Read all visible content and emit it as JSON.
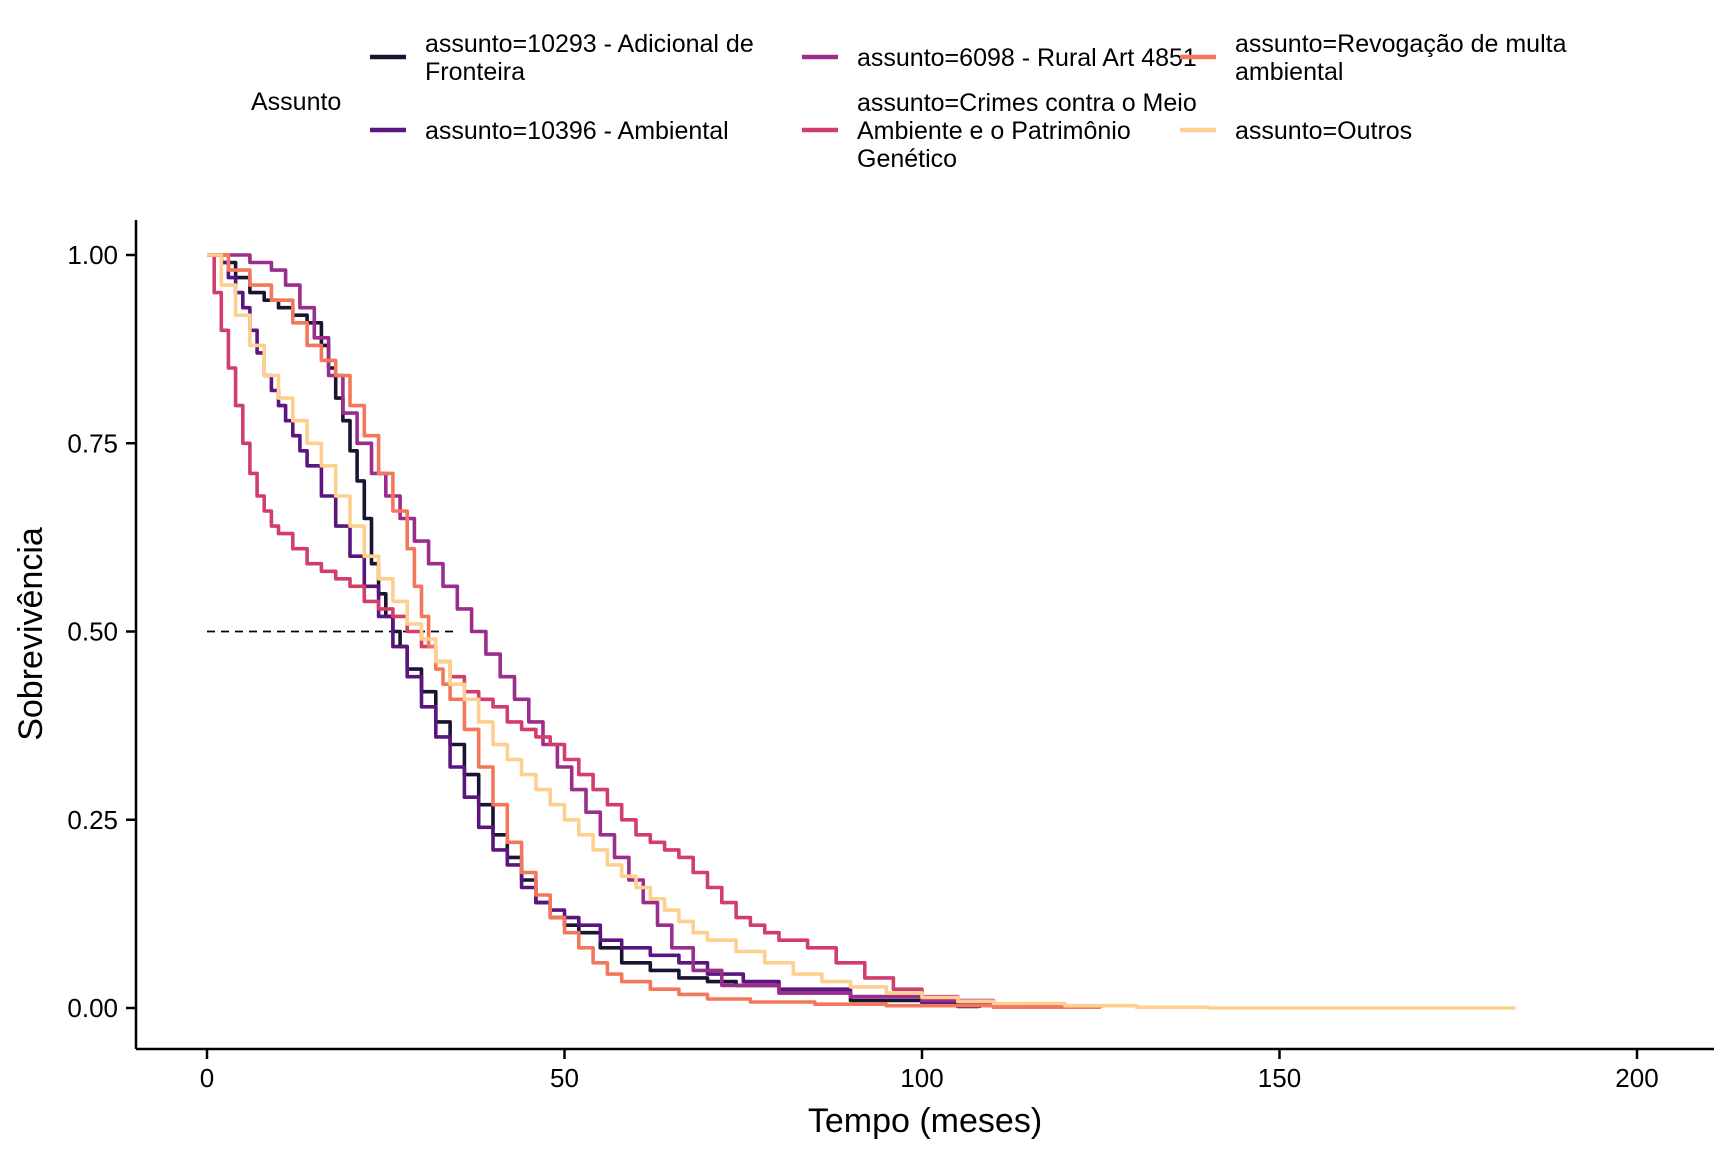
{
  "chart_data": {
    "type": "line",
    "step": true,
    "xlabel": "Tempo (meses)",
    "ylabel": "Sobrevivência",
    "xlim": [
      -10,
      210
    ],
    "ylim": [
      -0.05,
      1.05
    ],
    "x_ticks": [
      0,
      50,
      100,
      150,
      200
    ],
    "x_tick_labels": [
      "0",
      "50",
      "100",
      "150",
      "200"
    ],
    "y_ticks": [
      0,
      0.25,
      0.5,
      0.75,
      1.0
    ],
    "y_tick_labels": [
      "0.00",
      "0.25",
      "0.50",
      "0.75",
      "1.00"
    ],
    "grid": false,
    "legend": {
      "title": "Assunto",
      "position": "top"
    },
    "median_line": {
      "y": 0.5,
      "x_from": 0,
      "x_to": 35,
      "style": "dashed"
    },
    "series": [
      {
        "name": "assunto=10293 - Adicional de Fronteira",
        "color": "#1a1433",
        "points": [
          [
            0,
            1.0
          ],
          [
            2,
            0.99
          ],
          [
            4,
            0.97
          ],
          [
            6,
            0.95
          ],
          [
            8,
            0.94
          ],
          [
            10,
            0.93
          ],
          [
            12,
            0.92
          ],
          [
            14,
            0.91
          ],
          [
            16,
            0.88
          ],
          [
            17,
            0.85
          ],
          [
            18,
            0.81
          ],
          [
            19,
            0.78
          ],
          [
            20,
            0.74
          ],
          [
            21,
            0.7
          ],
          [
            22,
            0.65
          ],
          [
            23,
            0.59
          ],
          [
            24,
            0.55
          ],
          [
            25,
            0.52
          ],
          [
            26,
            0.5
          ],
          [
            27,
            0.48
          ],
          [
            28,
            0.45
          ],
          [
            30,
            0.42
          ],
          [
            32,
            0.38
          ],
          [
            34,
            0.35
          ],
          [
            36,
            0.31
          ],
          [
            38,
            0.27
          ],
          [
            40,
            0.23
          ],
          [
            42,
            0.2
          ],
          [
            44,
            0.17
          ],
          [
            46,
            0.14
          ],
          [
            48,
            0.12
          ],
          [
            50,
            0.11
          ],
          [
            52,
            0.1
          ],
          [
            55,
            0.08
          ],
          [
            58,
            0.06
          ],
          [
            62,
            0.05
          ],
          [
            66,
            0.04
          ],
          [
            70,
            0.035
          ],
          [
            74,
            0.03
          ],
          [
            80,
            0.02
          ],
          [
            90,
            0.01
          ],
          [
            100,
            0.005
          ],
          [
            105,
            0.002
          ],
          [
            108,
            0.0
          ]
        ]
      },
      {
        "name": "assunto=10396 - Ambiental",
        "color": "#5a167e",
        "points": [
          [
            0,
            1.0
          ],
          [
            2,
            0.99
          ],
          [
            3,
            0.97
          ],
          [
            4,
            0.95
          ],
          [
            5,
            0.93
          ],
          [
            6,
            0.9
          ],
          [
            7,
            0.87
          ],
          [
            8,
            0.84
          ],
          [
            9,
            0.82
          ],
          [
            10,
            0.8
          ],
          [
            11,
            0.78
          ],
          [
            12,
            0.76
          ],
          [
            13,
            0.74
          ],
          [
            14,
            0.72
          ],
          [
            16,
            0.68
          ],
          [
            18,
            0.64
          ],
          [
            20,
            0.6
          ],
          [
            22,
            0.56
          ],
          [
            24,
            0.52
          ],
          [
            26,
            0.48
          ],
          [
            28,
            0.44
          ],
          [
            30,
            0.4
          ],
          [
            32,
            0.36
          ],
          [
            34,
            0.32
          ],
          [
            36,
            0.28
          ],
          [
            38,
            0.24
          ],
          [
            40,
            0.21
          ],
          [
            42,
            0.19
          ],
          [
            44,
            0.16
          ],
          [
            46,
            0.14
          ],
          [
            48,
            0.13
          ],
          [
            50,
            0.12
          ],
          [
            52,
            0.11
          ],
          [
            55,
            0.09
          ],
          [
            58,
            0.08
          ],
          [
            62,
            0.07
          ],
          [
            66,
            0.06
          ],
          [
            70,
            0.045
          ],
          [
            75,
            0.035
          ],
          [
            80,
            0.025
          ],
          [
            90,
            0.015
          ],
          [
            100,
            0.008
          ],
          [
            110,
            0.003
          ],
          [
            115,
            0.0
          ]
        ]
      },
      {
        "name": "assunto=6098 - Rural Art 4851",
        "color": "#9b2d8c",
        "points": [
          [
            0,
            1.0
          ],
          [
            3,
            1.0
          ],
          [
            6,
            0.99
          ],
          [
            9,
            0.98
          ],
          [
            11,
            0.96
          ],
          [
            13,
            0.93
          ],
          [
            15,
            0.89
          ],
          [
            17,
            0.84
          ],
          [
            19,
            0.79
          ],
          [
            21,
            0.75
          ],
          [
            23,
            0.71
          ],
          [
            25,
            0.68
          ],
          [
            27,
            0.65
          ],
          [
            29,
            0.62
          ],
          [
            31,
            0.59
          ],
          [
            33,
            0.56
          ],
          [
            35,
            0.53
          ],
          [
            37,
            0.5
          ],
          [
            39,
            0.47
          ],
          [
            41,
            0.44
          ],
          [
            43,
            0.41
          ],
          [
            45,
            0.38
          ],
          [
            47,
            0.35
          ],
          [
            49,
            0.32
          ],
          [
            51,
            0.29
          ],
          [
            53,
            0.26
          ],
          [
            55,
            0.23
          ],
          [
            57,
            0.2
          ],
          [
            59,
            0.17
          ],
          [
            61,
            0.14
          ],
          [
            63,
            0.11
          ],
          [
            65,
            0.08
          ],
          [
            68,
            0.05
          ],
          [
            72,
            0.03
          ],
          [
            80,
            0.02
          ],
          [
            90,
            0.015
          ],
          [
            100,
            0.01
          ],
          [
            110,
            0.005
          ],
          [
            120,
            0.002
          ],
          [
            125,
            0.0
          ]
        ]
      },
      {
        "name": "assunto=Crimes contra o Meio Ambiente e o Patrimônio Genético",
        "color": "#d13e6b",
        "points": [
          [
            0,
            1.0
          ],
          [
            1,
            0.95
          ],
          [
            2,
            0.9
          ],
          [
            3,
            0.85
          ],
          [
            4,
            0.8
          ],
          [
            5,
            0.75
          ],
          [
            6,
            0.71
          ],
          [
            7,
            0.68
          ],
          [
            8,
            0.66
          ],
          [
            9,
            0.64
          ],
          [
            10,
            0.63
          ],
          [
            12,
            0.61
          ],
          [
            14,
            0.59
          ],
          [
            16,
            0.58
          ],
          [
            18,
            0.57
          ],
          [
            20,
            0.56
          ],
          [
            22,
            0.54
          ],
          [
            24,
            0.53
          ],
          [
            26,
            0.52
          ],
          [
            28,
            0.5
          ],
          [
            30,
            0.48
          ],
          [
            32,
            0.46
          ],
          [
            34,
            0.44
          ],
          [
            36,
            0.42
          ],
          [
            38,
            0.41
          ],
          [
            40,
            0.4
          ],
          [
            42,
            0.38
          ],
          [
            44,
            0.37
          ],
          [
            46,
            0.36
          ],
          [
            48,
            0.35
          ],
          [
            50,
            0.33
          ],
          [
            52,
            0.31
          ],
          [
            54,
            0.29
          ],
          [
            56,
            0.27
          ],
          [
            58,
            0.25
          ],
          [
            60,
            0.23
          ],
          [
            62,
            0.22
          ],
          [
            64,
            0.21
          ],
          [
            66,
            0.2
          ],
          [
            68,
            0.18
          ],
          [
            70,
            0.16
          ],
          [
            72,
            0.14
          ],
          [
            74,
            0.12
          ],
          [
            76,
            0.11
          ],
          [
            78,
            0.1
          ],
          [
            80,
            0.09
          ],
          [
            84,
            0.08
          ],
          [
            88,
            0.06
          ],
          [
            92,
            0.04
          ],
          [
            96,
            0.025
          ],
          [
            100,
            0.015
          ],
          [
            105,
            0.008
          ],
          [
            110,
            0.003
          ],
          [
            115,
            0.0
          ]
        ]
      },
      {
        "name": "assunto=Revogação de multa ambiental",
        "color": "#f3785b",
        "points": [
          [
            0,
            1.0
          ],
          [
            3,
            0.98
          ],
          [
            6,
            0.96
          ],
          [
            9,
            0.94
          ],
          [
            12,
            0.91
          ],
          [
            14,
            0.88
          ],
          [
            16,
            0.86
          ],
          [
            18,
            0.84
          ],
          [
            20,
            0.8
          ],
          [
            22,
            0.76
          ],
          [
            24,
            0.71
          ],
          [
            26,
            0.66
          ],
          [
            28,
            0.61
          ],
          [
            29,
            0.56
          ],
          [
            30,
            0.52
          ],
          [
            31,
            0.48
          ],
          [
            32,
            0.45
          ],
          [
            33,
            0.43
          ],
          [
            34,
            0.41
          ],
          [
            36,
            0.37
          ],
          [
            38,
            0.32
          ],
          [
            40,
            0.27
          ],
          [
            42,
            0.22
          ],
          [
            44,
            0.18
          ],
          [
            46,
            0.15
          ],
          [
            48,
            0.12
          ],
          [
            50,
            0.1
          ],
          [
            52,
            0.08
          ],
          [
            54,
            0.06
          ],
          [
            56,
            0.045
          ],
          [
            58,
            0.035
          ],
          [
            62,
            0.025
          ],
          [
            66,
            0.018
          ],
          [
            70,
            0.012
          ],
          [
            76,
            0.008
          ],
          [
            85,
            0.005
          ],
          [
            95,
            0.003
          ],
          [
            110,
            0.001
          ],
          [
            125,
            0.0
          ]
        ]
      },
      {
        "name": "assunto=Outros",
        "color": "#fdd08f",
        "points": [
          [
            0,
            1.0
          ],
          [
            2,
            0.96
          ],
          [
            4,
            0.92
          ],
          [
            6,
            0.88
          ],
          [
            8,
            0.84
          ],
          [
            10,
            0.81
          ],
          [
            12,
            0.78
          ],
          [
            14,
            0.75
          ],
          [
            16,
            0.72
          ],
          [
            18,
            0.68
          ],
          [
            20,
            0.64
          ],
          [
            22,
            0.6
          ],
          [
            24,
            0.57
          ],
          [
            26,
            0.54
          ],
          [
            28,
            0.51
          ],
          [
            30,
            0.49
          ],
          [
            32,
            0.46
          ],
          [
            34,
            0.43
          ],
          [
            36,
            0.41
          ],
          [
            38,
            0.38
          ],
          [
            40,
            0.35
          ],
          [
            42,
            0.33
          ],
          [
            44,
            0.31
          ],
          [
            46,
            0.29
          ],
          [
            48,
            0.27
          ],
          [
            50,
            0.25
          ],
          [
            52,
            0.23
          ],
          [
            54,
            0.21
          ],
          [
            56,
            0.19
          ],
          [
            58,
            0.175
          ],
          [
            60,
            0.16
          ],
          [
            62,
            0.145
          ],
          [
            64,
            0.13
          ],
          [
            66,
            0.115
          ],
          [
            68,
            0.1
          ],
          [
            70,
            0.09
          ],
          [
            74,
            0.075
          ],
          [
            78,
            0.06
          ],
          [
            82,
            0.045
          ],
          [
            86,
            0.035
          ],
          [
            90,
            0.028
          ],
          [
            95,
            0.02
          ],
          [
            100,
            0.014
          ],
          [
            105,
            0.009
          ],
          [
            110,
            0.006
          ],
          [
            120,
            0.003
          ],
          [
            130,
            0.001
          ],
          [
            140,
            0.0
          ],
          [
            183,
            0.0
          ]
        ]
      }
    ]
  }
}
